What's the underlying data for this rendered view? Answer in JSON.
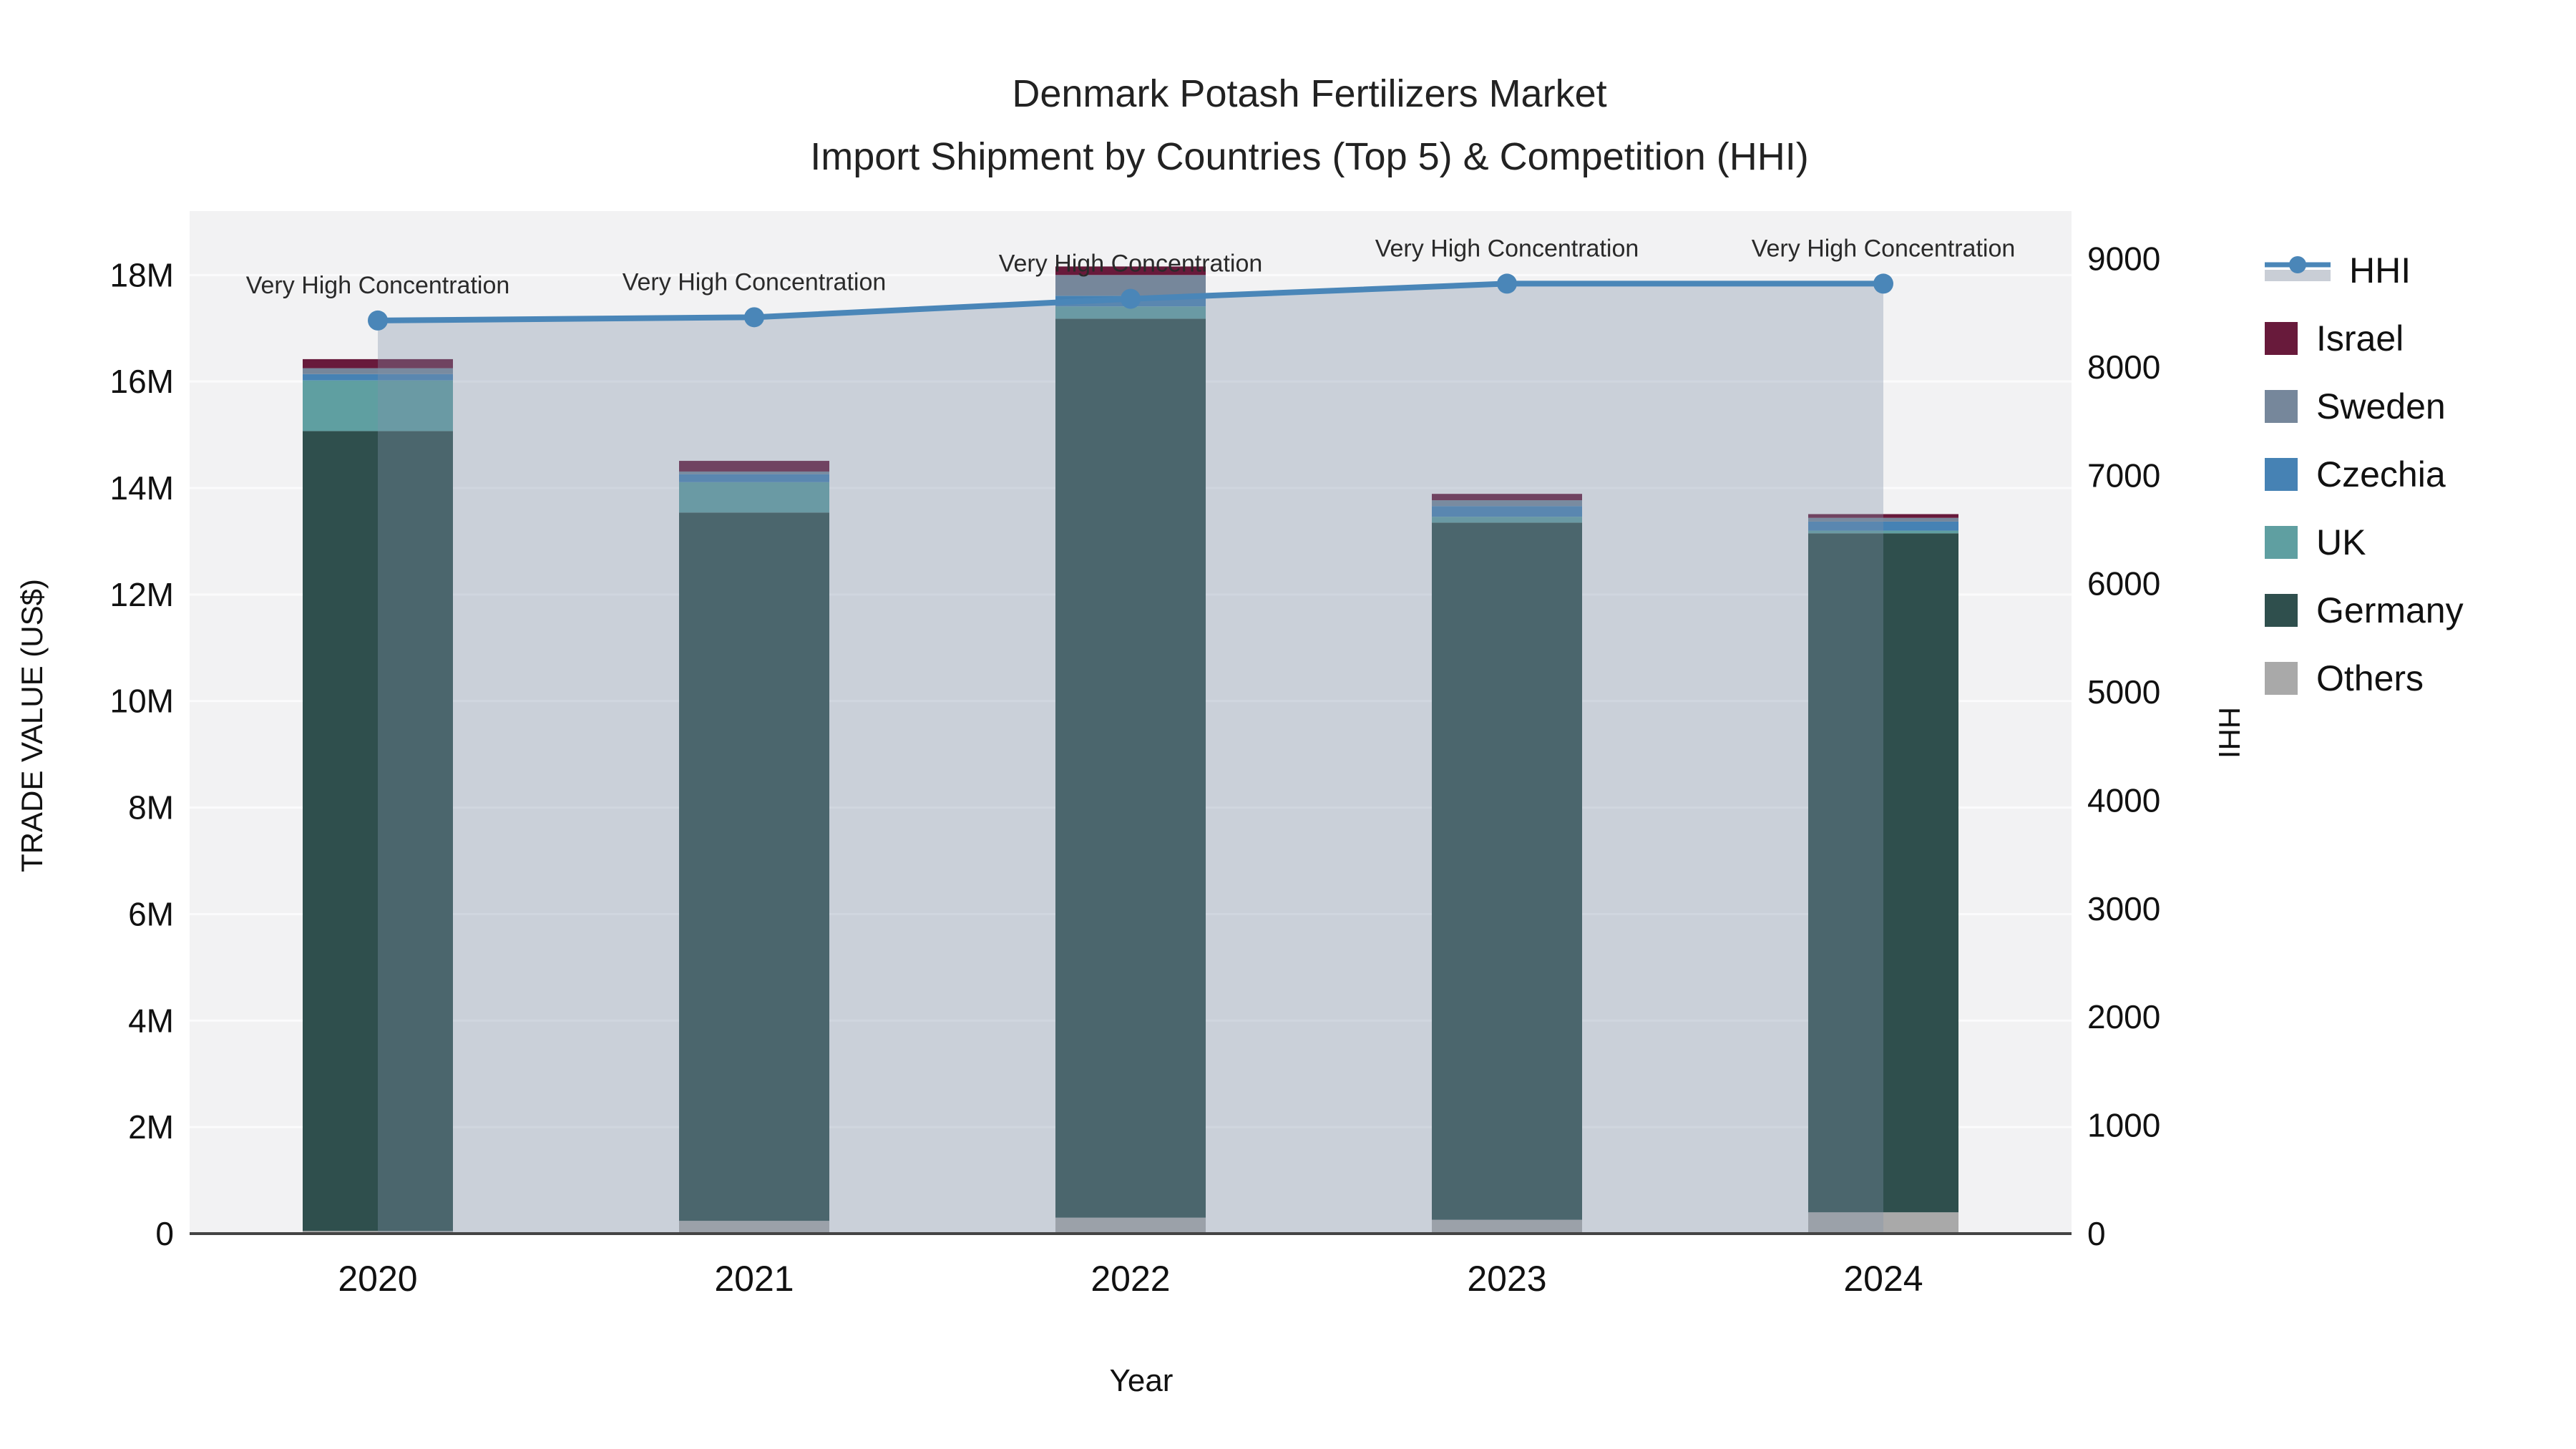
{
  "title": {
    "line1": "Denmark Potash Fertilizers Market",
    "line2": "Import Shipment by Countries (Top 5) & Competition (HHI)"
  },
  "axes": {
    "x": {
      "title": "Year",
      "ticks": [
        "2020",
        "2021",
        "2022",
        "2023",
        "2024"
      ]
    },
    "y_left": {
      "title": "TRADE VALUE (US$)",
      "ticks": [
        "0",
        "2M",
        "4M",
        "6M",
        "8M",
        "10M",
        "12M",
        "14M",
        "16M",
        "18M"
      ]
    },
    "y_right": {
      "title": "HHI",
      "ticks": [
        "0",
        "1000",
        "2000",
        "3000",
        "4000",
        "5000",
        "6000",
        "7000",
        "8000",
        "9000"
      ]
    }
  },
  "chart_data": {
    "type": "bar",
    "subtype": "stacked-bars-with-line-overlay",
    "categories": [
      "2020",
      "2021",
      "2022",
      "2023",
      "2024"
    ],
    "bar_unit": "million US$",
    "stack_order_bottom_to_top": [
      "Others",
      "Germany",
      "UK",
      "Czechia",
      "Sweden",
      "Israel"
    ],
    "series": [
      {
        "name": "Others",
        "color": "#a9a9a9",
        "values": [
          0.05,
          0.24,
          0.3,
          0.26,
          0.4
        ]
      },
      {
        "name": "Germany",
        "color": "#2f4f4d",
        "values": [
          15.02,
          13.3,
          16.88,
          13.09,
          12.75
        ]
      },
      {
        "name": "UK",
        "color": "#5f9fa1",
        "values": [
          0.95,
          0.57,
          0.23,
          0.11,
          0.05
        ]
      },
      {
        "name": "Czechia",
        "color": "#4682b4",
        "values": [
          0.12,
          0.15,
          0.2,
          0.2,
          0.17
        ]
      },
      {
        "name": "Sweden",
        "color": "#76879b",
        "values": [
          0.11,
          0.05,
          0.39,
          0.11,
          0.07
        ]
      },
      {
        "name": "Israel",
        "color": "#681a3b",
        "values": [
          0.17,
          0.2,
          0.16,
          0.12,
          0.07
        ]
      }
    ],
    "bar_totals": [
      16.42,
      14.51,
      18.16,
      13.89,
      13.51
    ],
    "line_series": {
      "name": "HHI",
      "color": "#4a86b8",
      "area_fill": "rgba(130,145,170,0.35)",
      "values": [
        8430,
        8460,
        8630,
        8770,
        8770
      ]
    },
    "annotation_text": "Very High Concentration",
    "ylim_left": [
      0,
      19.2
    ],
    "ylim_right": [
      0,
      9440
    ],
    "xlabel": "Year",
    "ylabel_left": "TRADE VALUE (US$)",
    "ylabel_right": "HHI",
    "grid": true,
    "legend_position": "right"
  },
  "legend": {
    "items": [
      {
        "label": "HHI",
        "type": "line",
        "color": "#4a86b8",
        "band": "#c9ced6"
      },
      {
        "label": "Israel",
        "type": "swatch",
        "color": "#681a3b"
      },
      {
        "label": "Sweden",
        "type": "swatch",
        "color": "#76879b"
      },
      {
        "label": "Czechia",
        "type": "swatch",
        "color": "#4682b4"
      },
      {
        "label": "UK",
        "type": "swatch",
        "color": "#5f9fa1"
      },
      {
        "label": "Germany",
        "type": "swatch",
        "color": "#2f4f4d"
      },
      {
        "label": "Others",
        "type": "swatch",
        "color": "#a9a9a9"
      }
    ]
  },
  "colors": {
    "plot_bg": "#f2f2f3",
    "gridline": "#fbfbfc",
    "axis_line": "#444444",
    "tick_text": "#111111",
    "annotation_text": "#2a2a2a"
  }
}
